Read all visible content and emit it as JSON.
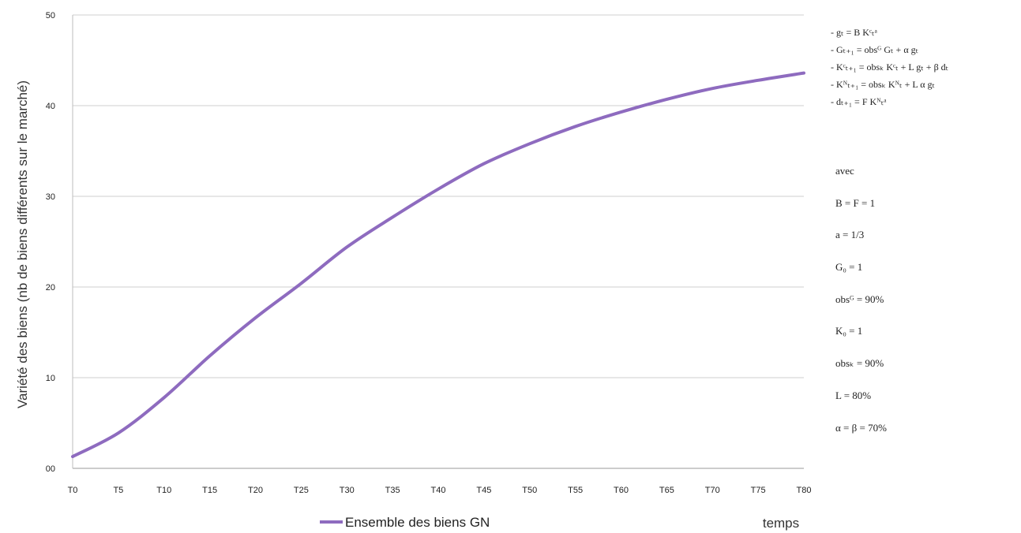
{
  "chart_data": {
    "type": "line",
    "xlabel": "temps",
    "ylabel": "Variété des biens (nb de biens différents sur le marché)",
    "ylim": [
      0,
      50
    ],
    "yticks": [
      "00",
      "10",
      "20",
      "30",
      "40",
      "50"
    ],
    "ytick_values": [
      0,
      10,
      20,
      30,
      40,
      50
    ],
    "xticks": [
      "T0",
      "T5",
      "T10",
      "T15",
      "T20",
      "T25",
      "T30",
      "T35",
      "T40",
      "T45",
      "T50",
      "T55",
      "T60",
      "T65",
      "T70",
      "T75",
      "T80"
    ],
    "grid": "horizontal",
    "legend_position": "bottom",
    "series": [
      {
        "name": "Ensemble des biens GN",
        "color": "#8e6bbf",
        "x": [
          0,
          5,
          10,
          15,
          20,
          25,
          30,
          35,
          40,
          45,
          50,
          55,
          60,
          65,
          70,
          75,
          80
        ],
        "values": [
          1.3,
          3.9,
          7.8,
          12.4,
          16.6,
          20.4,
          24.4,
          27.7,
          30.8,
          33.6,
          35.8,
          37.7,
          39.3,
          40.7,
          41.9,
          42.8,
          43.6
        ]
      }
    ]
  },
  "side": {
    "equations": [
      "- gₜ = B Kᶜₜᵃ",
      "- Gₜ₊₁ = obsᴳ Gₜ + α gₜ",
      "- Kᶜₜ₊₁ = obsₖ Kᶜₜ + L gₜ + β dₜ",
      "- Kᴺₜ₊₁ = obsₖ Kᴺₜ + L α gₜ",
      "- dₜ₊₁ = F Kᴺₜᵃ"
    ],
    "params": [
      "avec",
      "B = F = 1",
      "a = 1/3",
      "G₀ = 1",
      "obsᴳ = 90%",
      "K₀ = 1",
      "obsₖ = 90%",
      "L = 80%",
      "α = β = 70%"
    ]
  }
}
